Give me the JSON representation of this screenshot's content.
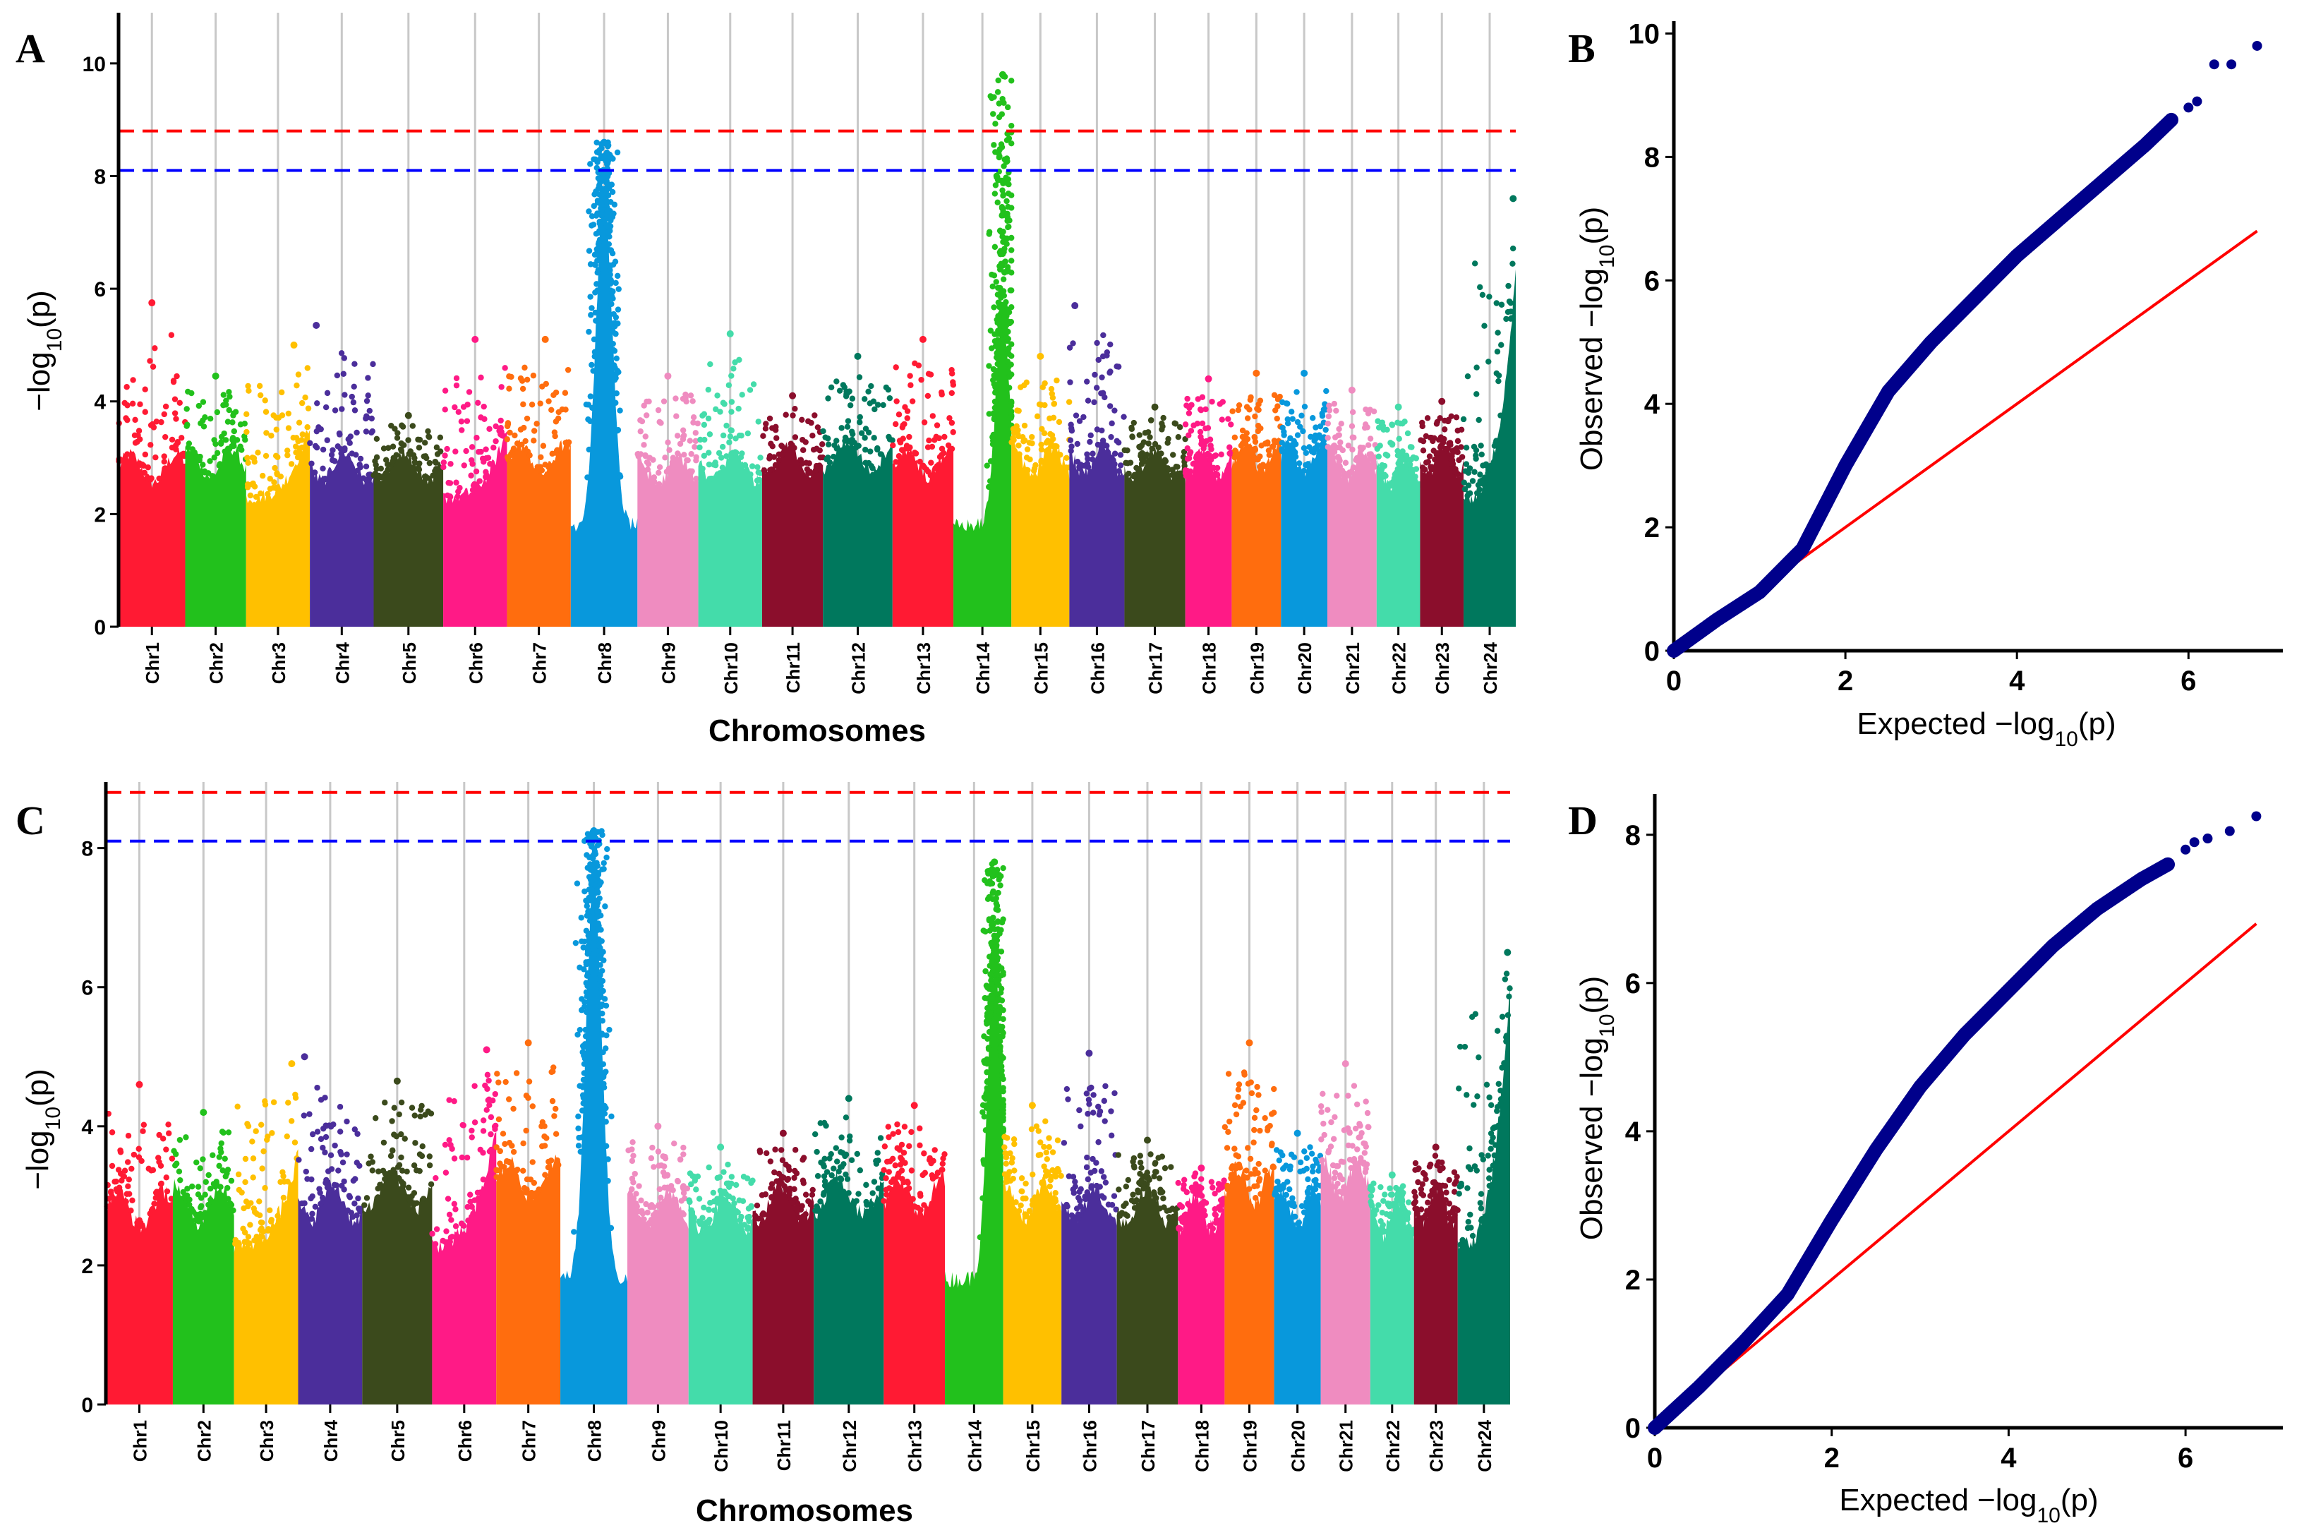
{
  "panels": {
    "A": {
      "label": "A"
    },
    "B": {
      "label": "B"
    },
    "C": {
      "label": "C"
    },
    "D": {
      "label": "D"
    }
  },
  "chart_data": [
    {
      "panel": "A",
      "type": "scatter",
      "subtype": "manhattan",
      "xlabel": "Chromosomes",
      "ylabel_prefix": "−log",
      "ylabel_sub": "10",
      "ylabel_suffix": "(p)",
      "ylim": [
        0,
        10.9
      ],
      "yticks": [
        0,
        2,
        4,
        6,
        8,
        10
      ],
      "thresholds": [
        {
          "name": "bonferroni",
          "value": 8.8,
          "color": "#ff0000"
        },
        {
          "name": "suggestive",
          "value": 8.1,
          "color": "#0000ff"
        }
      ],
      "chromosomes": [
        "Chr1",
        "Chr2",
        "Chr3",
        "Chr4",
        "Chr5",
        "Chr6",
        "Chr7",
        "Chr8",
        "Chr9",
        "Chr10",
        "Chr11",
        "Chr12",
        "Chr13",
        "Chr14",
        "Chr15",
        "Chr16",
        "Chr17",
        "Chr18",
        "Chr19",
        "Chr20",
        "Chr21",
        "Chr22",
        "Chr23",
        "Chr24"
      ],
      "chr_widths": [
        1.15,
        1.05,
        1.1,
        1.1,
        1.2,
        1.1,
        1.1,
        1.15,
        1.05,
        1.1,
        1.05,
        1.2,
        1.05,
        1.0,
        1.0,
        0.95,
        1.05,
        0.8,
        0.85,
        0.8,
        0.85,
        0.75,
        0.75,
        0.9
      ],
      "colors": [
        "#ff1a33",
        "#22c11c",
        "#ffc000",
        "#4b2e9b",
        "#3b4a1c",
        "#ff1a86",
        "#ff6d0e",
        "#0898dc",
        "#ef8cc0",
        "#44dcaa",
        "#8b0e2c",
        "#00785d",
        "#ff1a33",
        "#22c11c",
        "#ffc000",
        "#4b2e9b",
        "#3b4a1c",
        "#ff1a86",
        "#ff6d0e",
        "#0898dc",
        "#ef8cc0",
        "#44dcaa",
        "#8b0e2c",
        "#00785d"
      ],
      "chr_peak": [
        5.75,
        4.45,
        5.0,
        5.35,
        3.75,
        5.1,
        5.1,
        8.6,
        4.45,
        5.2,
        4.1,
        4.8,
        5.1,
        9.8,
        4.8,
        5.7,
        3.9,
        4.4,
        4.5,
        4.5,
        4.2,
        3.9,
        4.0,
        7.6
      ],
      "chr_base": [
        3.2,
        3.5,
        3.6,
        3.3,
        3.4,
        3.5,
        3.7,
        7.6,
        3.1,
        3.3,
        3.6,
        3.9,
        3.5,
        5.5,
        3.6,
        3.7,
        3.5,
        3.5,
        3.8,
        3.7,
        3.5,
        3.0,
        3.6,
        6.3
      ],
      "peak_pos": [
        0.5,
        0.5,
        0.75,
        0.1,
        0.5,
        0.5,
        0.6,
        0.5,
        0.5,
        0.5,
        0.5,
        0.5,
        0.5,
        0.85,
        0.5,
        0.1,
        0.5,
        0.5,
        0.5,
        0.5,
        0.5,
        0.5,
        0.5,
        0.95
      ],
      "peak_shape": [
        "flat",
        "flat",
        "rise",
        "flat",
        "flat",
        "rise",
        "flat",
        "peak",
        "flat",
        "flat",
        "flat",
        "flat",
        "flat",
        "peak",
        "flat",
        "flat",
        "flat",
        "flat",
        "flat",
        "flat",
        "flat",
        "flat",
        "flat",
        "rise"
      ]
    },
    {
      "panel": "B",
      "type": "scatter",
      "subtype": "qq",
      "xlabel_prefix": "Expected  −log",
      "ylabel_prefix": "Observed  −log",
      "label_sub": "10",
      "label_suffix": "(p)",
      "xlim": [
        0,
        7.1
      ],
      "ylim": [
        0,
        10.2
      ],
      "xticks": [
        0,
        2,
        4,
        6
      ],
      "yticks": [
        0,
        2,
        4,
        6,
        8,
        10
      ],
      "expected_max": 6.8,
      "reference_line": {
        "from": [
          0,
          0
        ],
        "to": [
          6.8,
          6.8
        ],
        "color": "#ff0000"
      },
      "curve_points": [
        [
          0,
          0
        ],
        [
          0.5,
          0.5
        ],
        [
          1.0,
          0.95
        ],
        [
          1.5,
          1.65
        ],
        [
          2.0,
          3.0
        ],
        [
          2.5,
          4.2
        ],
        [
          3.0,
          5.0
        ],
        [
          3.5,
          5.7
        ],
        [
          4.0,
          6.4
        ],
        [
          4.5,
          7.0
        ],
        [
          5.0,
          7.6
        ],
        [
          5.5,
          8.2
        ],
        [
          5.8,
          8.6
        ]
      ],
      "tail_points": [
        [
          6.0,
          8.8
        ],
        [
          6.1,
          8.9
        ],
        [
          6.3,
          9.5
        ],
        [
          6.5,
          9.5
        ],
        [
          6.8,
          9.8
        ]
      ],
      "point_color": "#00008b"
    },
    {
      "panel": "C",
      "type": "scatter",
      "subtype": "manhattan",
      "xlabel": "Chromosomes",
      "ylabel_prefix": "−log",
      "ylabel_sub": "10",
      "ylabel_suffix": "(p)",
      "ylim": [
        0,
        8.95
      ],
      "yticks": [
        0,
        2,
        4,
        6,
        8
      ],
      "thresholds": [
        {
          "name": "bonferroni",
          "value": 8.8,
          "color": "#ff0000"
        },
        {
          "name": "suggestive",
          "value": 8.1,
          "color": "#0000ff"
        }
      ],
      "chromosomes": [
        "Chr1",
        "Chr2",
        "Chr3",
        "Chr4",
        "Chr5",
        "Chr6",
        "Chr7",
        "Chr8",
        "Chr9",
        "Chr10",
        "Chr11",
        "Chr12",
        "Chr13",
        "Chr14",
        "Chr15",
        "Chr16",
        "Chr17",
        "Chr18",
        "Chr19",
        "Chr20",
        "Chr21",
        "Chr22",
        "Chr23",
        "Chr24"
      ],
      "chr_widths": [
        1.15,
        1.05,
        1.1,
        1.1,
        1.2,
        1.1,
        1.1,
        1.15,
        1.05,
        1.1,
        1.05,
        1.2,
        1.05,
        1.0,
        1.0,
        0.95,
        1.05,
        0.8,
        0.85,
        0.8,
        0.85,
        0.75,
        0.75,
        0.9
      ],
      "colors": [
        "#ff1a33",
        "#22c11c",
        "#ffc000",
        "#4b2e9b",
        "#3b4a1c",
        "#ff1a86",
        "#ff6d0e",
        "#0898dc",
        "#ef8cc0",
        "#44dcaa",
        "#8b0e2c",
        "#00785d",
        "#ff1a33",
        "#22c11c",
        "#ffc000",
        "#4b2e9b",
        "#3b4a1c",
        "#ff1a86",
        "#ff6d0e",
        "#0898dc",
        "#ef8cc0",
        "#44dcaa",
        "#8b0e2c",
        "#00785d"
      ],
      "chr_peak": [
        4.6,
        4.2,
        4.9,
        5.0,
        4.65,
        5.1,
        5.2,
        8.25,
        4.0,
        3.7,
        3.9,
        4.4,
        4.3,
        7.8,
        4.3,
        5.05,
        3.8,
        3.4,
        5.2,
        3.9,
        4.9,
        3.3,
        3.7,
        6.5
      ],
      "chr_base": [
        3.2,
        3.4,
        3.6,
        3.5,
        4.0,
        4.0,
        4.4,
        7.5,
        3.3,
        3.1,
        3.5,
        3.7,
        3.8,
        6.3,
        3.6,
        3.4,
        3.4,
        3.1,
        4.2,
        3.3,
        4.5,
        2.9,
        3.4,
        6.0
      ],
      "peak_pos": [
        0.5,
        0.5,
        0.9,
        0.1,
        0.5,
        0.85,
        0.5,
        0.5,
        0.5,
        0.5,
        0.5,
        0.5,
        0.5,
        0.85,
        0.5,
        0.5,
        0.5,
        0.5,
        0.5,
        0.5,
        0.5,
        0.5,
        0.5,
        0.95
      ],
      "peak_shape": [
        "flat",
        "flat",
        "rise",
        "flat",
        "flat",
        "rise",
        "flat",
        "peak",
        "flat",
        "flat",
        "flat",
        "flat",
        "flat",
        "peak",
        "flat",
        "flat",
        "flat",
        "flat",
        "flat",
        "flat",
        "flat",
        "flat",
        "flat",
        "rise"
      ]
    },
    {
      "panel": "D",
      "type": "scatter",
      "subtype": "qq",
      "xlabel_prefix": "Expected  −log",
      "ylabel_prefix": "Observed  −log",
      "label_sub": "10",
      "label_suffix": "(p)",
      "xlim": [
        0,
        7.1
      ],
      "ylim": [
        0,
        8.55
      ],
      "xticks": [
        0,
        2,
        4,
        6
      ],
      "yticks": [
        0,
        2,
        4,
        6,
        8
      ],
      "expected_max": 6.8,
      "reference_line": {
        "from": [
          0,
          0
        ],
        "to": [
          6.8,
          6.8
        ],
        "color": "#ff0000"
      },
      "curve_points": [
        [
          0,
          0
        ],
        [
          0.5,
          0.55
        ],
        [
          1.0,
          1.15
        ],
        [
          1.5,
          1.8
        ],
        [
          2.0,
          2.8
        ],
        [
          2.5,
          3.75
        ],
        [
          3.0,
          4.6
        ],
        [
          3.5,
          5.3
        ],
        [
          4.0,
          5.9
        ],
        [
          4.5,
          6.5
        ],
        [
          5.0,
          7.0
        ],
        [
          5.5,
          7.4
        ],
        [
          5.8,
          7.6
        ]
      ],
      "tail_points": [
        [
          6.0,
          7.8
        ],
        [
          6.1,
          7.9
        ],
        [
          6.25,
          7.95
        ],
        [
          6.5,
          8.05
        ],
        [
          6.8,
          8.25
        ]
      ],
      "point_color": "#00008b"
    }
  ]
}
